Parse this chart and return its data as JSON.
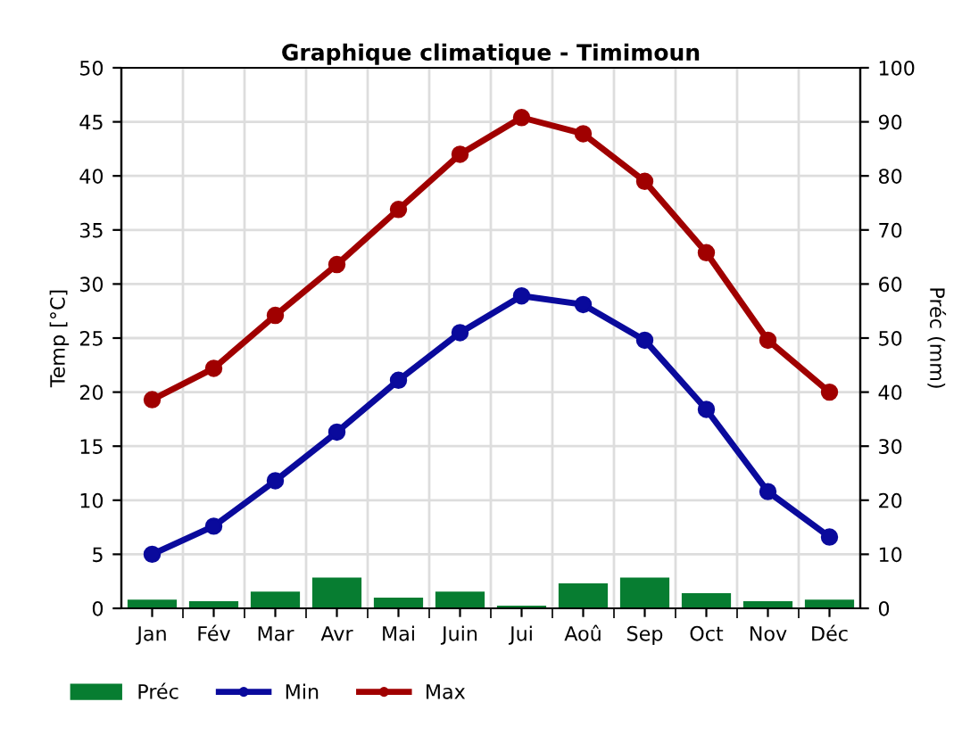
{
  "chart_data": {
    "type": "line",
    "title": "Graphique climatique - Timimoun",
    "ylabel": "Temp [°C]",
    "y2label": "Préc (mm)",
    "categories": [
      "Jan",
      "Fév",
      "Mar",
      "Avr",
      "Mai",
      "Juin",
      "Jui",
      "Aoû",
      "Sep",
      "Oct",
      "Nov",
      "Déc"
    ],
    "series": [
      {
        "name": "Préc",
        "type": "bar",
        "axis": "y2",
        "color": "#077d31",
        "values": [
          1.6,
          1.3,
          3.1,
          5.7,
          2.0,
          3.1,
          0.5,
          4.6,
          5.7,
          2.8,
          1.3,
          1.6
        ]
      },
      {
        "name": "Min",
        "color": "#0a0a9c",
        "values": [
          5.0,
          7.6,
          11.8,
          16.3,
          21.1,
          25.5,
          28.9,
          28.1,
          24.8,
          18.4,
          10.8,
          6.6
        ]
      },
      {
        "name": "Max",
        "color": "#a00000",
        "values": [
          19.3,
          22.2,
          27.1,
          31.8,
          36.9,
          42.0,
          45.4,
          43.9,
          39.5,
          32.9,
          24.8,
          20.0
        ]
      }
    ],
    "ylim": [
      0,
      50
    ],
    "yticks": [
      0,
      5,
      10,
      15,
      20,
      25,
      30,
      35,
      40,
      45,
      50
    ],
    "y2lim": [
      0,
      100
    ],
    "y2ticks": [
      0,
      10,
      20,
      30,
      40,
      50,
      60,
      70,
      80,
      90,
      100
    ],
    "grid": true,
    "legend": "bottom left",
    "marker": "circle",
    "line_style": "solid"
  }
}
